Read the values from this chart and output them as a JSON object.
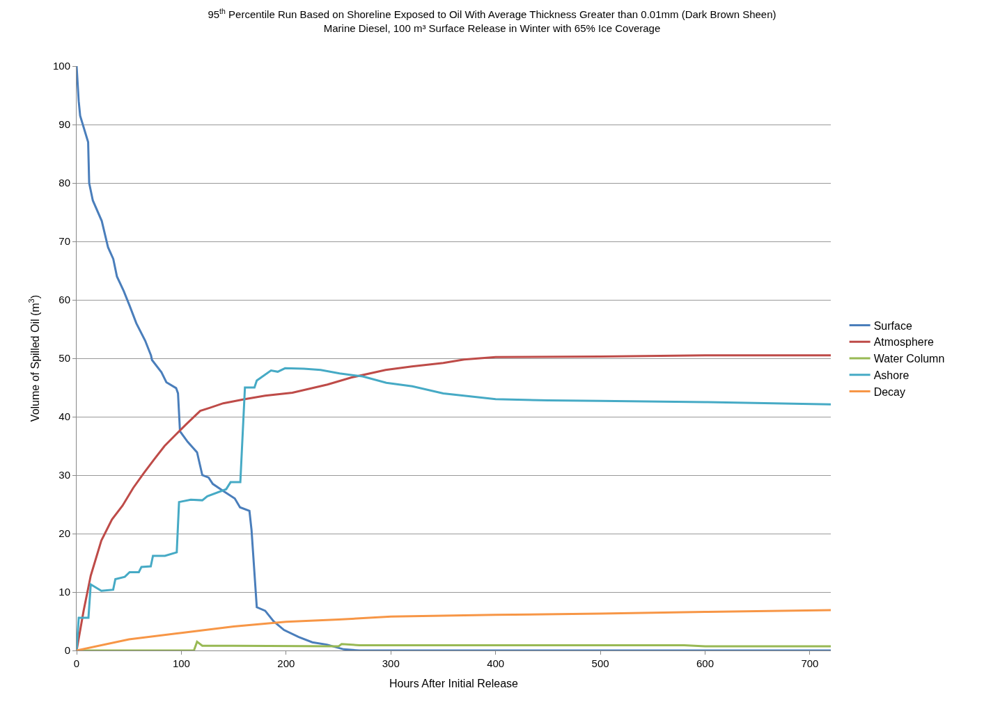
{
  "chart_data": {
    "type": "line",
    "title": "95$^{th}$ Percentile Run Based on Shoreline Exposed to Oil With Average Thickness Greater than 0.01mm (Dark Brown Sheen)",
    "subtitle": "Marine Diesel, 100 m³ Surface Release in Winter with 65% Ice Coverage",
    "xlabel": "Hours After Initial Release",
    "ylabel": "Volume of Spilled Oil (m$^{3}$)",
    "xlim": [
      0,
      720
    ],
    "xticks": [
      0,
      100,
      200,
      300,
      400,
      500,
      600,
      700
    ],
    "ylim": [
      0,
      100
    ],
    "yticks": [
      0,
      10,
      20,
      30,
      40,
      50,
      60,
      70,
      80,
      90,
      100
    ],
    "grid": "y",
    "legend": "right",
    "marker": "none",
    "line_style": "solid",
    "series": [
      {
        "name": "Surface",
        "color": "#4a7ebb",
        "x": [
          0,
          2,
          3.4,
          11,
          12,
          15.5,
          24,
          30,
          35,
          38.5,
          45,
          50.6,
          57,
          65.5,
          71,
          72,
          81,
          85.7,
          95,
          96.8,
          98.7,
          106,
          115,
          120,
          126,
          130,
          140,
          151,
          156,
          165,
          167,
          172,
          180,
          188,
          198,
          212,
          225,
          239,
          255,
          270,
          400,
          720
        ],
        "values": [
          100,
          94,
          91.5,
          87,
          80,
          77,
          73.5,
          69,
          67,
          64,
          61.5,
          59,
          56,
          53,
          50.5,
          49.7,
          47.6,
          45.9,
          44.9,
          44,
          37.5,
          35.7,
          33.9,
          30,
          29.6,
          28.5,
          27.3,
          26,
          24.5,
          23.9,
          20.6,
          7.4,
          6.8,
          5,
          3.5,
          2.3,
          1.4,
          1,
          0.2,
          0,
          0,
          0
        ]
      },
      {
        "name": "Atmosphere",
        "color": "#be4b48",
        "x": [
          0,
          6.7,
          13.5,
          23.6,
          33.7,
          43.9,
          54,
          64,
          74,
          84,
          94.5,
          104.6,
          118,
          126.8,
          140,
          160.6,
          180,
          206,
          239.5,
          262,
          295,
          320,
          350,
          370,
          400,
          500,
          600,
          720
        ],
        "values": [
          0,
          6.8,
          12.8,
          18.8,
          22.4,
          24.8,
          27.8,
          30.3,
          32.7,
          35,
          36.9,
          38.7,
          41,
          41.5,
          42.3,
          43,
          43.6,
          44.1,
          45.5,
          46.7,
          48,
          48.6,
          49.2,
          49.8,
          50.2,
          50.3,
          50.5,
          50.5
        ]
      },
      {
        "name": "Water Column",
        "color": "#98b954",
        "x": [
          0,
          112,
          115,
          120,
          150,
          250,
          253,
          270,
          580,
          600,
          720
        ],
        "values": [
          0,
          0,
          1.5,
          0.8,
          0.8,
          0.7,
          1.1,
          0.9,
          0.9,
          0.7,
          0.7
        ]
      },
      {
        "name": "Ashore",
        "color": "#46aac5",
        "x": [
          0,
          2,
          11.3,
          13.5,
          23.6,
          34.9,
          37,
          46,
          50.6,
          59.4,
          61.9,
          70.8,
          72.9,
          84.3,
          95.6,
          97.8,
          109,
          120,
          124.8,
          142.8,
          147,
          156.3,
          160.7,
          169.8,
          172,
          185.6,
          192,
          199,
          217,
          233,
          251,
          273,
          295.7,
          320.5,
          350,
          400,
          450,
          500,
          600,
          720
        ],
        "values": [
          0,
          5.6,
          5.6,
          11.3,
          10.2,
          10.4,
          12.2,
          12.6,
          13.4,
          13.4,
          14.3,
          14.4,
          16.2,
          16.2,
          16.8,
          25.4,
          25.8,
          25.7,
          26.4,
          27.6,
          28.8,
          28.8,
          45,
          45,
          46.2,
          47.9,
          47.7,
          48.3,
          48.2,
          48,
          47.4,
          46.9,
          45.8,
          45.2,
          44,
          43,
          42.8,
          42.7,
          42.5,
          42.1
        ]
      },
      {
        "name": "Decay",
        "color": "#f79646",
        "x": [
          0,
          50,
          100,
          150,
          200,
          250,
          300,
          400,
          500,
          600,
          720
        ],
        "values": [
          0,
          1.9,
          3,
          4.1,
          4.9,
          5.3,
          5.8,
          6.1,
          6.3,
          6.6,
          6.9
        ]
      }
    ]
  }
}
